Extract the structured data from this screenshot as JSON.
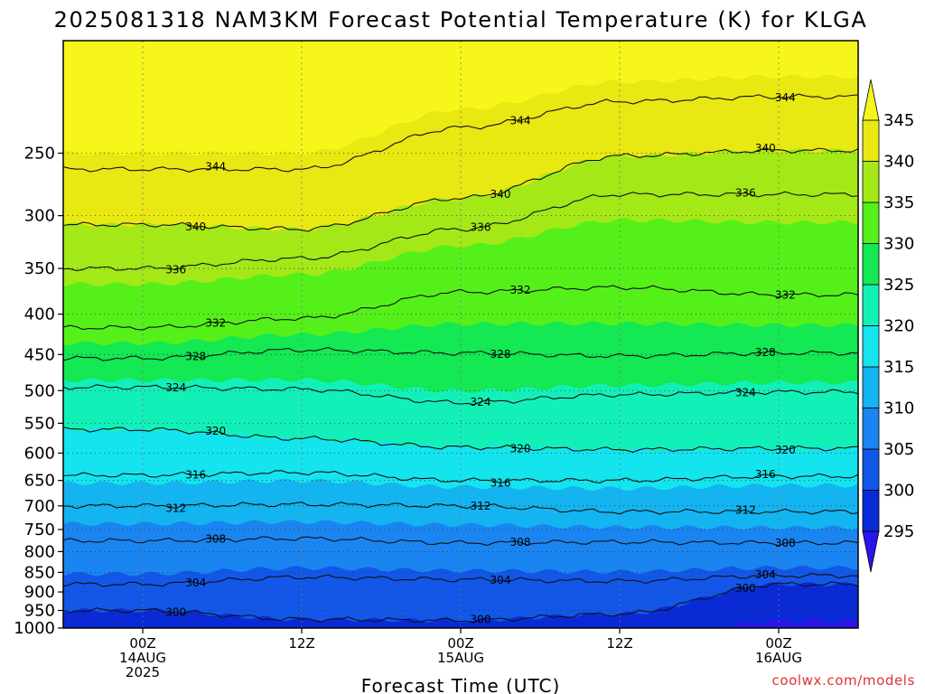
{
  "chart_data": {
    "type": "heatmap",
    "title": "2025081318 NAM3KM Forecast Potential Temperature (K) for KLGA",
    "xlabel": "Forecast Time (UTC)",
    "ylabel": "",
    "y_scale": "log",
    "y_inverted": true,
    "ylim": [
      1000,
      180
    ],
    "y_ticks": [
      250,
      300,
      350,
      400,
      450,
      500,
      550,
      600,
      650,
      700,
      750,
      800,
      850,
      900,
      950,
      1000
    ],
    "x_ticks": [
      {
        "time": "2025-08-14 00Z",
        "line1": "00Z",
        "line2": "14AUG",
        "line3": "2025"
      },
      {
        "time": "2025-08-14 12Z",
        "line1": "12Z",
        "line2": "",
        "line3": ""
      },
      {
        "time": "2025-08-15 00Z",
        "line1": "00Z",
        "line2": "15AUG",
        "line3": ""
      },
      {
        "time": "2025-08-15 12Z",
        "line1": "12Z",
        "line2": "",
        "line3": ""
      },
      {
        "time": "2025-08-16 00Z",
        "line1": "00Z",
        "line2": "16AUG",
        "line3": ""
      }
    ],
    "xlim": [
      "2025-08-13 18Z",
      "2025-08-16 06Z"
    ],
    "colorbar": {
      "levels": [
        295,
        300,
        305,
        310,
        315,
        320,
        325,
        330,
        335,
        340,
        345
      ],
      "colors": [
        "#2b14e8",
        "#0a2ad6",
        "#1257e8",
        "#1a85f0",
        "#14b4f0",
        "#14e4ee",
        "#12f0b8",
        "#14e852",
        "#55f01a",
        "#a4e818",
        "#e8e812",
        "#f6f61a"
      ],
      "extend": "both"
    },
    "contours": [
      {
        "value": 300,
        "label": "300",
        "level": [
          950,
          975,
          978,
          960,
          880
        ]
      },
      {
        "value": 304,
        "label": "304",
        "level": [
          880,
          862,
          868,
          872,
          858
        ]
      },
      {
        "value": 308,
        "label": "308",
        "level": [
          775,
          770,
          780,
          778,
          780
        ]
      },
      {
        "value": 312,
        "label": "312",
        "level": [
          700,
          697,
          700,
          712,
          712
        ]
      },
      {
        "value": 316,
        "label": "316",
        "level": [
          640,
          635,
          650,
          650,
          642
        ]
      },
      {
        "value": 320,
        "label": "320",
        "level": [
          560,
          575,
          590,
          594,
          592
        ]
      },
      {
        "value": 324,
        "label": "324",
        "level": [
          495,
          498,
          518,
          506,
          502
        ]
      },
      {
        "value": 328,
        "label": "328",
        "level": [
          455,
          444,
          448,
          452,
          448
        ]
      },
      {
        "value": 332,
        "label": "332",
        "level": [
          416,
          405,
          375,
          370,
          378
        ]
      },
      {
        "value": 336,
        "label": "336",
        "level": [
          350,
          340,
          312,
          282,
          282
        ]
      },
      {
        "value": 340,
        "label": "340",
        "level": [
          308,
          312,
          285,
          252,
          248
        ]
      },
      {
        "value": 344,
        "label": "344",
        "level": [
          262,
          262,
          232,
          215,
          212
        ]
      }
    ],
    "grid": true
  },
  "credit": "coolwx.com/models"
}
